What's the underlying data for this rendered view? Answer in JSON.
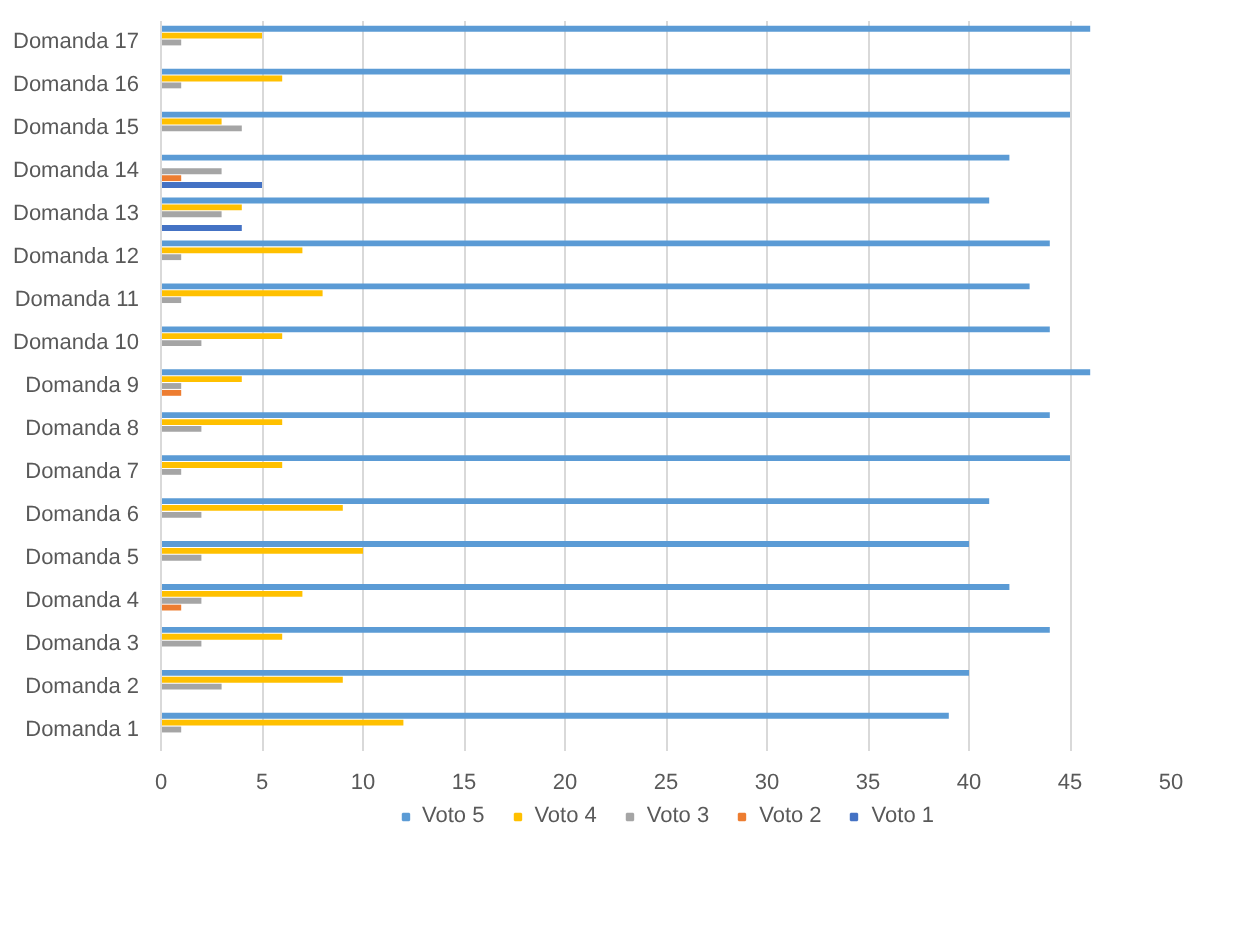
{
  "chart_data": {
    "type": "bar",
    "orientation": "horizontal",
    "categories": [
      "Domanda 17",
      "Domanda 16",
      "Domanda 15",
      "Domanda 14",
      "Domanda 13",
      "Domanda 12",
      "Domanda 11",
      "Domanda 10",
      "Domanda 9",
      "Domanda 8",
      "Domanda 7",
      "Domanda 6",
      "Domanda 5",
      "Domanda 4",
      "Domanda 3",
      "Domanda 2",
      "Domanda 1"
    ],
    "series": [
      {
        "name": "Voto 5",
        "color": "#5b9bd5",
        "values": [
          46,
          45,
          45,
          42,
          41,
          44,
          43,
          44,
          46,
          44,
          45,
          41,
          40,
          42,
          44,
          40,
          39
        ]
      },
      {
        "name": "Voto 4",
        "color": "#ffc000",
        "values": [
          5,
          6,
          3,
          0,
          4,
          7,
          8,
          6,
          4,
          6,
          6,
          9,
          10,
          7,
          6,
          9,
          12
        ]
      },
      {
        "name": "Voto 3",
        "color": "#a5a5a5",
        "values": [
          1,
          1,
          4,
          3,
          3,
          1,
          1,
          2,
          1,
          2,
          1,
          2,
          2,
          2,
          2,
          3,
          1
        ]
      },
      {
        "name": "Voto 2",
        "color": "#ed7d31",
        "values": [
          0,
          0,
          0,
          1,
          0,
          0,
          0,
          0,
          1,
          0,
          0,
          0,
          0,
          1,
          0,
          0,
          0
        ]
      },
      {
        "name": "Voto 1",
        "color": "#4472c4",
        "values": [
          0,
          0,
          0,
          5,
          4,
          0,
          0,
          0,
          0,
          0,
          0,
          0,
          0,
          0,
          0,
          0,
          0
        ]
      }
    ],
    "xlim": [
      0,
      50
    ],
    "xticks": [
      0,
      5,
      10,
      15,
      20,
      25,
      30,
      35,
      40,
      45,
      50
    ],
    "grid": "x",
    "legend": "bottom"
  }
}
